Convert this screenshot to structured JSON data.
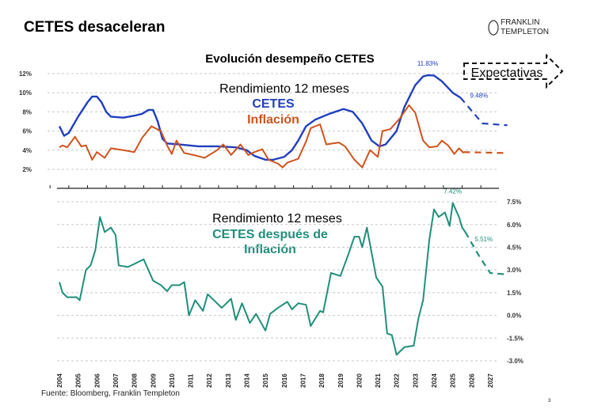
{
  "slide": {
    "title": "CETES desaceleran",
    "logo": {
      "line1": "FRANKLIN",
      "line2": "TEMPLETON"
    },
    "source": "Fuente: Bloomberg, Franklin Templeton",
    "page_number": "3",
    "expectations_label": "Expectativas"
  },
  "colors": {
    "cetes": "#1f3fbf",
    "inflation": "#d0531c",
    "real": "#1f8f7a",
    "grid": "#c8c8c8"
  },
  "chart_data": [
    {
      "type": "line",
      "title": "Evolución desempeño CETES",
      "annotation": "Rendimiento 12 meses",
      "yticks": [
        "2%",
        "4%",
        "6%",
        "8%",
        "10%",
        "12%"
      ],
      "ytick_values": [
        2,
        4,
        6,
        8,
        10,
        12
      ],
      "ylim": [
        1,
        12.5
      ],
      "grid": true,
      "series": [
        {
          "name": "CETES",
          "key": "cetes",
          "labels": [
            {
              "date": "2023-09",
              "text": "11.83%"
            },
            {
              "date": "2025-06",
              "text": "9.48%"
            }
          ],
          "points": [
            [
              "2004-01",
              6.5
            ],
            [
              "2004-04",
              5.5
            ],
            [
              "2004-07",
              5.8
            ],
            [
              "2005-01",
              7.5
            ],
            [
              "2005-07",
              9.0
            ],
            [
              "2005-10",
              9.6
            ],
            [
              "2006-01",
              9.6
            ],
            [
              "2006-04",
              9.0
            ],
            [
              "2006-07",
              8.0
            ],
            [
              "2006-10",
              7.5
            ],
            [
              "2007-06",
              7.4
            ],
            [
              "2008-01",
              7.6
            ],
            [
              "2008-06",
              7.8
            ],
            [
              "2008-10",
              8.2
            ],
            [
              "2009-01",
              8.2
            ],
            [
              "2009-04",
              7.0
            ],
            [
              "2009-07",
              5.2
            ],
            [
              "2009-10",
              4.7
            ],
            [
              "2010-06",
              4.6
            ],
            [
              "2011-06",
              4.4
            ],
            [
              "2012-06",
              4.4
            ],
            [
              "2013-06",
              4.3
            ],
            [
              "2014-01",
              4.0
            ],
            [
              "2014-06",
              3.4
            ],
            [
              "2015-01",
              3.0
            ],
            [
              "2015-06",
              3.0
            ],
            [
              "2016-01",
              3.3
            ],
            [
              "2016-06",
              4.0
            ],
            [
              "2016-10",
              5.0
            ],
            [
              "2017-03",
              6.5
            ],
            [
              "2017-09",
              7.2
            ],
            [
              "2018-06",
              7.8
            ],
            [
              "2019-03",
              8.3
            ],
            [
              "2019-09",
              8.0
            ],
            [
              "2020-03",
              6.8
            ],
            [
              "2020-09",
              5.0
            ],
            [
              "2021-02",
              4.4
            ],
            [
              "2021-06",
              4.6
            ],
            [
              "2022-01",
              6.0
            ],
            [
              "2022-06",
              8.5
            ],
            [
              "2023-01",
              10.8
            ],
            [
              "2023-06",
              11.7
            ],
            [
              "2023-09",
              11.83
            ],
            [
              "2024-01",
              11.8
            ],
            [
              "2024-06",
              11.2
            ],
            [
              "2025-01",
              10.0
            ],
            [
              "2025-06",
              9.48
            ]
          ],
          "forecast": [
            [
              "2025-06",
              9.48
            ],
            [
              "2026-08",
              6.8
            ],
            [
              "2027-12",
              6.6
            ]
          ]
        },
        {
          "name": "Inflación",
          "key": "inflation",
          "labels": [],
          "points": [
            [
              "2004-01",
              4.3
            ],
            [
              "2004-03",
              4.5
            ],
            [
              "2004-06",
              4.3
            ],
            [
              "2004-11",
              5.4
            ],
            [
              "2005-03",
              4.4
            ],
            [
              "2005-06",
              4.5
            ],
            [
              "2005-10",
              3.0
            ],
            [
              "2006-01",
              3.8
            ],
            [
              "2006-06",
              3.2
            ],
            [
              "2006-10",
              4.2
            ],
            [
              "2007-06",
              4.0
            ],
            [
              "2008-01",
              3.8
            ],
            [
              "2008-06",
              5.3
            ],
            [
              "2008-12",
              6.5
            ],
            [
              "2009-06",
              6.0
            ],
            [
              "2009-10",
              4.5
            ],
            [
              "2010-01",
              3.6
            ],
            [
              "2010-04",
              5.0
            ],
            [
              "2010-09",
              3.7
            ],
            [
              "2011-03",
              3.5
            ],
            [
              "2011-10",
              3.2
            ],
            [
              "2012-06",
              4.0
            ],
            [
              "2012-10",
              4.6
            ],
            [
              "2013-03",
              3.5
            ],
            [
              "2013-09",
              4.6
            ],
            [
              "2014-02",
              3.5
            ],
            [
              "2014-06",
              3.8
            ],
            [
              "2014-11",
              4.1
            ],
            [
              "2015-03",
              3.0
            ],
            [
              "2015-09",
              2.6
            ],
            [
              "2015-12",
              2.2
            ],
            [
              "2016-03",
              2.7
            ],
            [
              "2016-10",
              3.1
            ],
            [
              "2017-03",
              4.9
            ],
            [
              "2017-06",
              6.3
            ],
            [
              "2017-12",
              6.7
            ],
            [
              "2018-04",
              4.6
            ],
            [
              "2018-12",
              4.8
            ],
            [
              "2019-04",
              4.4
            ],
            [
              "2019-10",
              3.0
            ],
            [
              "2020-03",
              2.2
            ],
            [
              "2020-08",
              4.0
            ],
            [
              "2021-01",
              3.3
            ],
            [
              "2021-04",
              6.0
            ],
            [
              "2021-09",
              6.2
            ],
            [
              "2022-03",
              7.3
            ],
            [
              "2022-09",
              8.7
            ],
            [
              "2023-01",
              7.9
            ],
            [
              "2023-06",
              5.0
            ],
            [
              "2023-10",
              4.3
            ],
            [
              "2024-03",
              4.4
            ],
            [
              "2024-06",
              5.0
            ],
            [
              "2024-10",
              4.5
            ],
            [
              "2025-02",
              3.6
            ],
            [
              "2025-05",
              4.2
            ],
            [
              "2025-08",
              3.7
            ]
          ],
          "forecast": [
            [
              "2025-08",
              3.8
            ],
            [
              "2027-12",
              3.7
            ]
          ]
        }
      ]
    },
    {
      "type": "line",
      "annotation": [
        "Rendimiento 12 meses",
        "CETES después de",
        "Inflación"
      ],
      "yticks": [
        "-3.0%",
        "-1.5%",
        "0.0%",
        "1.5%",
        "3.0%",
        "4.5%",
        "6.0%",
        "7.5%"
      ],
      "ytick_values": [
        -3,
        -1.5,
        0,
        1.5,
        3,
        4.5,
        6,
        7.5
      ],
      "ylim": [
        -3,
        7.5
      ],
      "grid": true,
      "xticks": [
        "2004",
        "2005",
        "2006",
        "2007",
        "2008",
        "2009",
        "2010",
        "2011",
        "2012",
        "2013",
        "2014",
        "2015",
        "2016",
        "2017",
        "2018",
        "2019",
        "2020",
        "2021",
        "2022",
        "2023",
        "2024",
        "2025",
        "2026",
        "2027"
      ],
      "series": [
        {
          "key": "real",
          "labels": [
            {
              "date": "2025-01",
              "text": "7.42%"
            },
            {
              "date": "2025-09",
              "text": "5.51%"
            }
          ],
          "points": [
            [
              "2004-01",
              2.2
            ],
            [
              "2004-03",
              1.5
            ],
            [
              "2004-06",
              1.2
            ],
            [
              "2004-12",
              1.2
            ],
            [
              "2005-02",
              1.0
            ],
            [
              "2005-06",
              3.0
            ],
            [
              "2005-09",
              3.3
            ],
            [
              "2005-12",
              4.3
            ],
            [
              "2006-03",
              6.5
            ],
            [
              "2006-06",
              5.5
            ],
            [
              "2006-10",
              5.8
            ],
            [
              "2007-01",
              5.3
            ],
            [
              "2007-03",
              3.3
            ],
            [
              "2007-09",
              3.2
            ],
            [
              "2008-03",
              3.5
            ],
            [
              "2008-07",
              3.7
            ],
            [
              "2009-01",
              2.3
            ],
            [
              "2009-06",
              2.0
            ],
            [
              "2009-10",
              1.6
            ],
            [
              "2010-01",
              2.0
            ],
            [
              "2010-06",
              2.0
            ],
            [
              "2010-09",
              2.2
            ],
            [
              "2010-12",
              0.0
            ],
            [
              "2011-04",
              1.0
            ],
            [
              "2011-09",
              0.3
            ],
            [
              "2011-12",
              1.4
            ],
            [
              "2012-04",
              1.0
            ],
            [
              "2012-09",
              0.5
            ],
            [
              "2013-03",
              1.1
            ],
            [
              "2013-06",
              -0.3
            ],
            [
              "2013-10",
              0.8
            ],
            [
              "2014-03",
              -0.5
            ],
            [
              "2014-07",
              0.1
            ],
            [
              "2015-01",
              -1.0
            ],
            [
              "2015-04",
              0.1
            ],
            [
              "2015-09",
              0.5
            ],
            [
              "2016-03",
              0.9
            ],
            [
              "2016-06",
              0.4
            ],
            [
              "2016-10",
              0.8
            ],
            [
              "2017-03",
              0.7
            ],
            [
              "2017-06",
              -0.7
            ],
            [
              "2017-12",
              0.3
            ],
            [
              "2018-02",
              0.2
            ],
            [
              "2018-07",
              2.8
            ],
            [
              "2019-01",
              2.6
            ],
            [
              "2019-06",
              4.0
            ],
            [
              "2019-10",
              5.2
            ],
            [
              "2020-01",
              5.2
            ],
            [
              "2020-03",
              4.5
            ],
            [
              "2020-06",
              5.8
            ],
            [
              "2020-12",
              2.5
            ],
            [
              "2021-04",
              1.9
            ],
            [
              "2021-07",
              -1.2
            ],
            [
              "2021-10",
              -1.3
            ],
            [
              "2022-01",
              -2.6
            ],
            [
              "2022-06",
              -2.1
            ],
            [
              "2022-12",
              -2.0
            ],
            [
              "2023-03",
              -0.2
            ],
            [
              "2023-06",
              1.0
            ],
            [
              "2023-10",
              5.0
            ],
            [
              "2024-01",
              7.0
            ],
            [
              "2024-04",
              6.5
            ],
            [
              "2024-08",
              6.8
            ],
            [
              "2024-11",
              5.9
            ],
            [
              "2025-01",
              7.42
            ],
            [
              "2025-05",
              6.5
            ],
            [
              "2025-07",
              5.8
            ],
            [
              "2025-09",
              5.51
            ]
          ],
          "forecast": [
            [
              "2025-09",
              5.51
            ],
            [
              "2026-06",
              3.9
            ],
            [
              "2027-01",
              2.8
            ],
            [
              "2027-12",
              2.7
            ]
          ]
        }
      ]
    }
  ]
}
